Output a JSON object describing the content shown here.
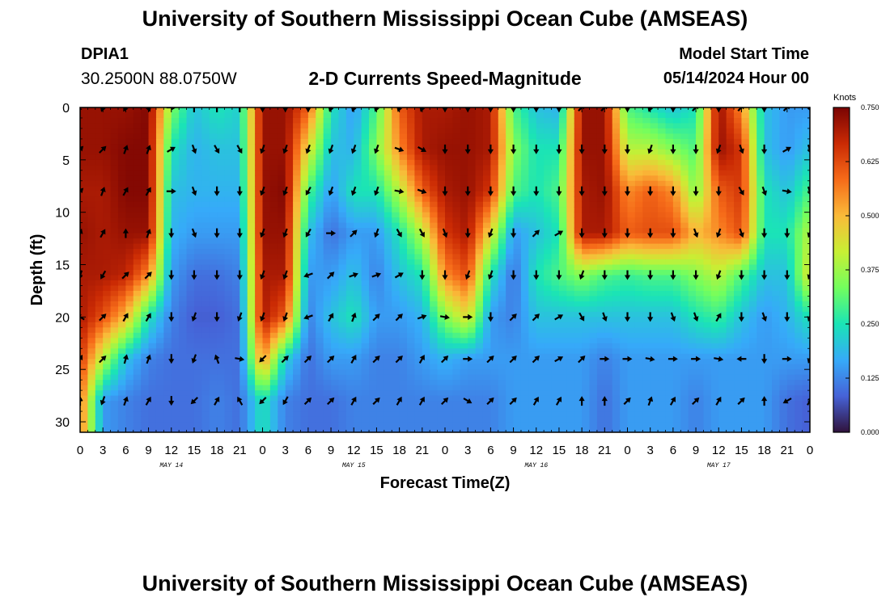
{
  "header": {
    "title": "University of Southern Mississippi Ocean Cube (AMSEAS)",
    "station_id": "DPIA1",
    "coords": "30.2500N  88.0750W",
    "subtitle": "2-D Currents Speed-Magnitude",
    "model_start_label": "Model Start Time",
    "model_start_value": "05/14/2024 Hour 00"
  },
  "footer": {
    "title": "University of Southern Mississippi Ocean Cube (AMSEAS)"
  },
  "colors": {
    "colormap": [
      "#30123b",
      "#4662d7",
      "#36aaf9",
      "#1ae4b6",
      "#72fe5e",
      "#c8ef34",
      "#faba39",
      "#f66b19",
      "#ca2a04",
      "#7a0403"
    ]
  },
  "chart_data": {
    "type": "heatmap",
    "title": "2-D Currents Speed-Magnitude",
    "xlabel": "Forecast Time(Z)",
    "ylabel": "Depth (ft)",
    "x_hours": [
      0,
      3,
      6,
      9,
      12,
      15,
      18,
      21,
      24,
      27,
      30,
      33,
      36,
      39,
      42,
      45,
      48,
      51,
      54,
      57,
      60,
      63,
      66,
      69,
      72,
      75,
      78,
      81,
      84,
      87,
      90,
      93,
      96
    ],
    "xlim": [
      0,
      96
    ],
    "x_tick_labels": [
      "0",
      "3",
      "6",
      "9",
      "12",
      "15",
      "18",
      "21",
      "0",
      "3",
      "6",
      "9",
      "12",
      "15",
      "18",
      "21",
      "0",
      "3",
      "6",
      "9",
      "12",
      "15",
      "18",
      "21",
      "0",
      "3",
      "6",
      "9",
      "12",
      "15",
      "18",
      "21",
      "0"
    ],
    "date_labels": [
      {
        "hour": 12,
        "text": "MAY 14"
      },
      {
        "hour": 36,
        "text": "MAY 15"
      },
      {
        "hour": 60,
        "text": "MAY 16"
      },
      {
        "hour": 84,
        "text": "MAY 17"
      }
    ],
    "depths_ft": [
      0,
      4,
      8,
      12,
      16,
      20,
      24,
      28
    ],
    "ylim": [
      0,
      31
    ],
    "y_ticks": [
      0,
      5,
      10,
      15,
      20,
      25,
      30
    ],
    "y_tick_labels": [
      "0",
      "5",
      "10",
      "15",
      "20",
      "25",
      "30"
    ],
    "speed_knots": [
      [
        0.72,
        0.72,
        0.7,
        0.72,
        0.7,
        0.7,
        0.65,
        0.58
      ],
      [
        0.72,
        0.72,
        0.7,
        0.7,
        0.7,
        0.62,
        0.4,
        0.15
      ],
      [
        0.72,
        0.74,
        0.74,
        0.72,
        0.68,
        0.5,
        0.2,
        0.12
      ],
      [
        0.74,
        0.74,
        0.74,
        0.72,
        0.55,
        0.25,
        0.12,
        0.1
      ],
      [
        0.35,
        0.25,
        0.2,
        0.18,
        0.15,
        0.12,
        0.1,
        0.1
      ],
      [
        0.2,
        0.18,
        0.18,
        0.15,
        0.1,
        0.08,
        0.1,
        0.1
      ],
      [
        0.25,
        0.2,
        0.18,
        0.15,
        0.1,
        0.08,
        0.1,
        0.12
      ],
      [
        0.22,
        0.2,
        0.18,
        0.15,
        0.12,
        0.1,
        0.1,
        0.1
      ],
      [
        0.72,
        0.72,
        0.72,
        0.72,
        0.7,
        0.7,
        0.55,
        0.25
      ],
      [
        0.72,
        0.72,
        0.74,
        0.72,
        0.7,
        0.6,
        0.22,
        0.12
      ],
      [
        0.6,
        0.45,
        0.3,
        0.2,
        0.15,
        0.12,
        0.1,
        0.1
      ],
      [
        0.25,
        0.2,
        0.15,
        0.1,
        0.15,
        0.2,
        0.15,
        0.1
      ],
      [
        0.15,
        0.18,
        0.25,
        0.15,
        0.2,
        0.25,
        0.15,
        0.12
      ],
      [
        0.3,
        0.35,
        0.25,
        0.15,
        0.12,
        0.15,
        0.12,
        0.12
      ],
      [
        0.6,
        0.55,
        0.4,
        0.25,
        0.2,
        0.15,
        0.12,
        0.12
      ],
      [
        0.7,
        0.7,
        0.6,
        0.4,
        0.25,
        0.18,
        0.15,
        0.12
      ],
      [
        0.7,
        0.72,
        0.7,
        0.65,
        0.55,
        0.35,
        0.18,
        0.12
      ],
      [
        0.72,
        0.72,
        0.72,
        0.7,
        0.62,
        0.45,
        0.15,
        0.12
      ],
      [
        0.7,
        0.7,
        0.65,
        0.45,
        0.25,
        0.15,
        0.15,
        0.12
      ],
      [
        0.3,
        0.35,
        0.3,
        0.15,
        0.1,
        0.12,
        0.15,
        0.15
      ],
      [
        0.2,
        0.25,
        0.25,
        0.2,
        0.25,
        0.2,
        0.15,
        0.15
      ],
      [
        0.18,
        0.25,
        0.3,
        0.25,
        0.3,
        0.2,
        0.15,
        0.15
      ],
      [
        0.72,
        0.72,
        0.7,
        0.7,
        0.35,
        0.2,
        0.15,
        0.15
      ],
      [
        0.72,
        0.72,
        0.72,
        0.7,
        0.3,
        0.2,
        0.12,
        0.1
      ],
      [
        0.3,
        0.4,
        0.55,
        0.6,
        0.28,
        0.2,
        0.15,
        0.15
      ],
      [
        0.25,
        0.4,
        0.6,
        0.62,
        0.3,
        0.2,
        0.15,
        0.15
      ],
      [
        0.2,
        0.35,
        0.55,
        0.62,
        0.3,
        0.2,
        0.15,
        0.15
      ],
      [
        0.25,
        0.3,
        0.35,
        0.5,
        0.35,
        0.25,
        0.15,
        0.12
      ],
      [
        0.72,
        0.72,
        0.6,
        0.55,
        0.4,
        0.28,
        0.15,
        0.15
      ],
      [
        0.55,
        0.65,
        0.65,
        0.62,
        0.3,
        0.2,
        0.15,
        0.15
      ],
      [
        0.2,
        0.2,
        0.25,
        0.25,
        0.2,
        0.15,
        0.15,
        0.15
      ],
      [
        0.15,
        0.15,
        0.2,
        0.25,
        0.2,
        0.18,
        0.15,
        0.1
      ],
      [
        0.15,
        0.2,
        0.3,
        0.4,
        0.45,
        0.25,
        0.15,
        0.08
      ]
    ],
    "direction_deg": [
      [
        225,
        45,
        45,
        20,
        200,
        300,
        30,
        0
      ],
      [
        200,
        45,
        20,
        30,
        210,
        45,
        45,
        200
      ],
      [
        210,
        20,
        30,
        0,
        45,
        30,
        15,
        20
      ],
      [
        160,
        20,
        30,
        20,
        45,
        30,
        20,
        30
      ],
      [
        90,
        60,
        90,
        180,
        180,
        180,
        180,
        180
      ],
      [
        0,
        160,
        160,
        160,
        180,
        200,
        200,
        225
      ],
      [
        0,
        150,
        180,
        180,
        180,
        180,
        340,
        30
      ],
      [
        0,
        150,
        180,
        180,
        180,
        200,
        100,
        330
      ],
      [
        180,
        200,
        200,
        200,
        200,
        200,
        225,
        225
      ],
      [
        180,
        200,
        200,
        200,
        200,
        200,
        45,
        210
      ],
      [
        180,
        200,
        210,
        210,
        250,
        250,
        45,
        45
      ],
      [
        200,
        200,
        200,
        90,
        45,
        30,
        45,
        45
      ],
      [
        200,
        200,
        200,
        45,
        70,
        20,
        30,
        30
      ],
      [
        200,
        200,
        200,
        200,
        70,
        45,
        45,
        45
      ],
      [
        200,
        110,
        100,
        150,
        60,
        45,
        45,
        30
      ],
      [
        200,
        120,
        110,
        150,
        180,
        70,
        30,
        30
      ],
      [
        180,
        180,
        180,
        160,
        180,
        100,
        45,
        45
      ],
      [
        180,
        180,
        180,
        180,
        200,
        90,
        90,
        120
      ],
      [
        180,
        180,
        180,
        200,
        200,
        180,
        45,
        45
      ],
      [
        180,
        180,
        180,
        180,
        180,
        45,
        45,
        45
      ],
      [
        180,
        180,
        180,
        45,
        180,
        45,
        45,
        30
      ],
      [
        180,
        180,
        180,
        60,
        180,
        60,
        60,
        30
      ],
      [
        45,
        180,
        180,
        180,
        200,
        150,
        45,
        0
      ],
      [
        45,
        180,
        180,
        180,
        180,
        160,
        90,
        0
      ],
      [
        180,
        180,
        180,
        180,
        180,
        180,
        90,
        45
      ],
      [
        200,
        200,
        180,
        180,
        180,
        180,
        100,
        20
      ],
      [
        180,
        180,
        180,
        180,
        180,
        160,
        90,
        30
      ],
      [
        45,
        180,
        180,
        160,
        180,
        160,
        90,
        45
      ],
      [
        180,
        200,
        180,
        200,
        200,
        30,
        100,
        30
      ],
      [
        45,
        160,
        150,
        160,
        180,
        180,
        270,
        45
      ],
      [
        180,
        180,
        160,
        180,
        180,
        160,
        180,
        0
      ],
      [
        45,
        60,
        100,
        180,
        180,
        180,
        90,
        240
      ],
      [
        160,
        160,
        160,
        200,
        200,
        200,
        200,
        30
      ]
    ],
    "colorbar": {
      "label": "Knots",
      "min": 0,
      "max": 0.75,
      "ticks": [
        0.0,
        0.125,
        0.25,
        0.375,
        0.5,
        0.625,
        0.75
      ],
      "tick_labels": [
        "0.000",
        "0.125",
        "0.250",
        "0.375",
        "0.500",
        "0.625",
        "0.750"
      ]
    }
  }
}
